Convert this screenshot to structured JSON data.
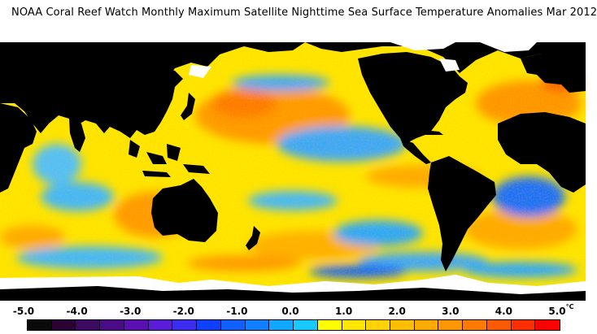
{
  "title": "NOAA Coral Reef Watch Monthly Maximum Satellite Nighttime Sea Surface Temperature Anomalies     Mar 2012",
  "units": "°C",
  "legend": {
    "tick_labels": [
      "-5.0",
      "-4.0",
      "-3.0",
      "-2.0",
      "-1.0",
      "0.0",
      "1.0",
      "2.0",
      "3.0",
      "4.0",
      "5.0"
    ],
    "tick_values": [
      -5,
      -4,
      -3,
      -2,
      -1,
      0,
      1,
      2,
      3,
      4,
      5
    ],
    "min": -5.0,
    "max": 5.0,
    "step": 0.5,
    "colors": [
      "#0a0a0a",
      "#2b0033",
      "#3c0a60",
      "#4b0a86",
      "#5a10b0",
      "#5b1cd8",
      "#3c2cf0",
      "#1040ff",
      "#1060ff",
      "#1080ff",
      "#10a8ff",
      "#18c8ff",
      "#ffff00",
      "#ffe600",
      "#ffd200",
      "#ffbe00",
      "#ffaa00",
      "#ff9600",
      "#ff7a00",
      "#ff5a00",
      "#ff3000",
      "#ff0000"
    ]
  },
  "map_colors": {
    "land": "#000000",
    "ice": "#ffffff",
    "ocean_neutral": "#ffe600",
    "warm": "#ff9a00",
    "very_warm": "#ff5a00",
    "cool": "#1aa0ff",
    "cold": "#1040ff"
  }
}
